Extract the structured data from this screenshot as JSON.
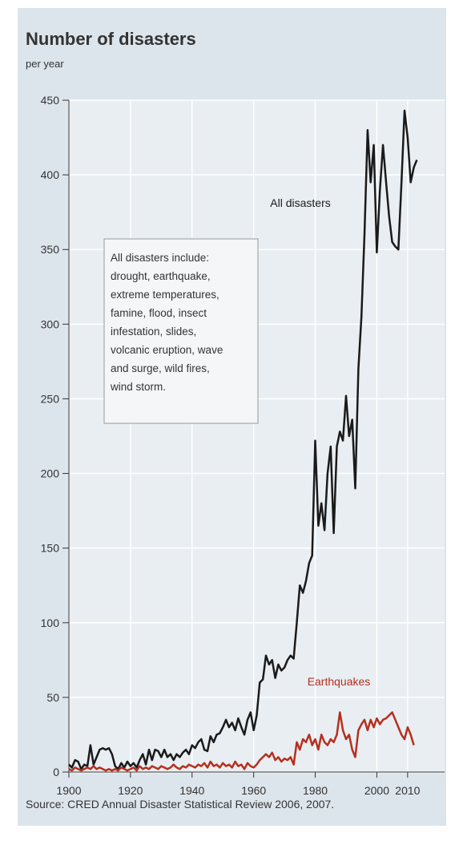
{
  "chart_data": {
    "type": "line",
    "title": "Number of disasters",
    "subtitle": "per year",
    "source": "Source: CRED Annual Disaster Statistical Review 2006, 2007.",
    "annotation": [
      "All disasters include:",
      "drought, earthquake,",
      "extreme temperatures,",
      "famine, flood, insect",
      "infestation, slides,",
      "volcanic eruption, wave",
      "and surge, wild fires,",
      "wind storm."
    ],
    "x": [
      1900,
      1901,
      1902,
      1903,
      1904,
      1905,
      1906,
      1907,
      1908,
      1909,
      1910,
      1911,
      1912,
      1913,
      1914,
      1915,
      1916,
      1917,
      1918,
      1919,
      1920,
      1921,
      1922,
      1923,
      1924,
      1925,
      1926,
      1927,
      1928,
      1929,
      1930,
      1931,
      1932,
      1933,
      1934,
      1935,
      1936,
      1937,
      1938,
      1939,
      1940,
      1941,
      1942,
      1943,
      1944,
      1945,
      1946,
      1947,
      1948,
      1949,
      1950,
      1951,
      1952,
      1953,
      1954,
      1955,
      1956,
      1957,
      1958,
      1959,
      1960,
      1961,
      1962,
      1963,
      1964,
      1965,
      1966,
      1967,
      1968,
      1969,
      1970,
      1971,
      1972,
      1973,
      1974,
      1975,
      1976,
      1977,
      1978,
      1979,
      1980,
      1981,
      1982,
      1983,
      1984,
      1985,
      1986,
      1987,
      1988,
      1989,
      1990,
      1991,
      1992,
      1993,
      1994,
      1995,
      1996,
      1997,
      1998,
      1999,
      2000,
      2001,
      2002,
      2003,
      2004,
      2005,
      2006,
      2007,
      2008,
      2009,
      2010,
      2011,
      2012,
      2013
    ],
    "series": [
      {
        "name": "All disasters",
        "color": "#1a1a1a",
        "values": [
          5,
          3,
          8,
          7,
          2,
          5,
          4,
          18,
          5,
          10,
          15,
          16,
          15,
          16,
          12,
          4,
          2,
          6,
          3,
          7,
          4,
          6,
          3,
          8,
          12,
          5,
          15,
          8,
          15,
          14,
          10,
          15,
          10,
          12,
          8,
          12,
          10,
          13,
          15,
          12,
          18,
          16,
          20,
          22,
          15,
          14,
          24,
          20,
          25,
          26,
          30,
          35,
          30,
          33,
          28,
          36,
          30,
          25,
          35,
          40,
          28,
          38,
          60,
          62,
          78,
          72,
          75,
          63,
          72,
          68,
          70,
          75,
          78,
          76,
          100,
          125,
          120,
          128,
          140,
          145,
          222,
          165,
          180,
          162,
          200,
          218,
          160,
          218,
          228,
          222,
          252,
          225,
          236,
          190,
          270,
          305,
          360,
          430,
          395,
          420,
          348,
          390,
          420,
          395,
          372,
          355,
          352,
          350,
          395,
          443,
          425,
          395,
          405,
          410
        ]
      },
      {
        "name": "Earthquakes",
        "color": "#b5301f",
        "values": [
          2,
          1,
          3,
          2,
          1,
          2,
          3,
          2,
          4,
          2,
          3,
          2,
          1,
          2,
          1,
          2,
          1,
          3,
          2,
          1,
          2,
          3,
          1,
          4,
          2,
          3,
          2,
          4,
          3,
          2,
          4,
          3,
          2,
          3,
          5,
          3,
          2,
          4,
          3,
          5,
          4,
          3,
          5,
          4,
          6,
          3,
          7,
          4,
          5,
          3,
          6,
          4,
          5,
          3,
          7,
          4,
          5,
          2,
          6,
          4,
          3,
          5,
          8,
          10,
          12,
          10,
          13,
          8,
          10,
          7,
          9,
          8,
          10,
          5,
          20,
          15,
          22,
          20,
          25,
          18,
          22,
          15,
          25,
          20,
          18,
          22,
          20,
          25,
          40,
          28,
          22,
          25,
          15,
          10,
          28,
          32,
          35,
          28,
          35,
          30,
          36,
          32,
          35,
          36,
          38,
          40,
          35,
          30,
          25,
          22,
          30,
          25,
          18,
          null
        ]
      }
    ],
    "xlim": [
      1900,
      2022
    ],
    "xticks": [
      1900,
      1920,
      1940,
      1960,
      1980,
      2000,
      2010
    ],
    "ylim": [
      0,
      450
    ],
    "yticks": [
      0,
      50,
      100,
      150,
      200,
      250,
      300,
      350,
      400,
      450
    ],
    "grid": true
  }
}
